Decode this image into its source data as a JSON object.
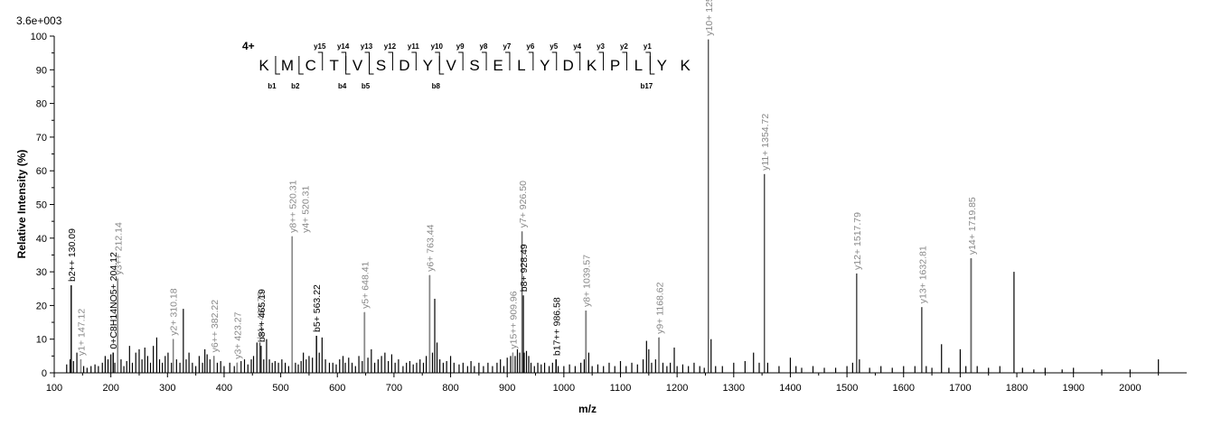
{
  "chart_data": {
    "type": "bar",
    "scale_label": "3.6e+003",
    "ylabel": "Relative   Intensity (%)",
    "xlabel": "m/z",
    "xlim": [
      100,
      2100
    ],
    "ylim": [
      0,
      100
    ],
    "x_ticks": [
      100,
      200,
      300,
      400,
      500,
      600,
      700,
      800,
      900,
      1000,
      1100,
      1200,
      1300,
      1400,
      1500,
      1600,
      1700,
      1800,
      1900,
      2000
    ],
    "y_ticks": [
      0,
      10,
      20,
      30,
      40,
      50,
      60,
      70,
      80,
      90,
      100
    ],
    "colors": {
      "annotated_gray": "#888888",
      "annotated_black": "#000000",
      "peak": "#000000"
    },
    "peptide": {
      "charge": "4+",
      "sequence": [
        "K",
        "M",
        "C",
        "T",
        "V",
        "S",
        "D",
        "Y",
        "V",
        "S",
        "E",
        "L",
        "Y",
        "D",
        "K",
        "P",
        "L",
        "Y",
        "K"
      ],
      "y_ions": [
        {
          "after": 2,
          "label": "y15"
        },
        {
          "after": 3,
          "label": "y14"
        },
        {
          "after": 4,
          "label": "y13"
        },
        {
          "after": 5,
          "label": "y12"
        },
        {
          "after": 6,
          "label": "y11"
        },
        {
          "after": 7,
          "label": "y10"
        },
        {
          "after": 8,
          "label": "y9"
        },
        {
          "after": 9,
          "label": "y8"
        },
        {
          "after": 10,
          "label": "y7"
        },
        {
          "after": 11,
          "label": "y6"
        },
        {
          "after": 12,
          "label": "y5"
        },
        {
          "after": 13,
          "label": "y4"
        },
        {
          "after": 14,
          "label": "y3"
        },
        {
          "after": 15,
          "label": "y2"
        },
        {
          "after": 16,
          "label": "y1"
        }
      ],
      "b_ions": [
        {
          "after": 0,
          "label": "b1"
        },
        {
          "after": 1,
          "label": "b2"
        },
        {
          "after": 3,
          "label": "b4"
        },
        {
          "after": 4,
          "label": "b5"
        },
        {
          "after": 7,
          "label": "b8"
        },
        {
          "after": 16,
          "label": "b17"
        }
      ]
    },
    "annotated_peaks": [
      {
        "mz": 130.09,
        "intensity": 26,
        "label": "b2++ 130.09",
        "color": "black"
      },
      {
        "mz": 147.12,
        "intensity": 4,
        "label": "y1+ 147.12",
        "color": "gray"
      },
      {
        "mz": 204.12,
        "intensity": 6,
        "label": "0+C8H14NO5+ 204.12",
        "color": "black"
      },
      {
        "mz": 212.14,
        "intensity": 28,
        "label": "y3++ 212.14",
        "color": "gray"
      },
      {
        "mz": 310.18,
        "intensity": 10,
        "label": "y2+ 310.18",
        "color": "gray"
      },
      {
        "mz": 382.22,
        "intensity": 5,
        "label": "y6++ 382.22",
        "color": "gray"
      },
      {
        "mz": 423.27,
        "intensity": 3,
        "label": "y3+ 423.27",
        "color": "gray"
      },
      {
        "mz": 463.75,
        "intensity": 9,
        "label": "b4+ 463.75",
        "color": "gray"
      },
      {
        "mz": 465.19,
        "intensity": 8,
        "label": "b8++ 465.19",
        "color": "black"
      },
      {
        "mz": 520.31,
        "intensity": 40.5,
        "label": "y8++ 520.31",
        "color": "gray"
      },
      {
        "mz": 520.31,
        "intensity": 40.5,
        "label": "y4+ 520.31",
        "color": "gray"
      },
      {
        "mz": 563.22,
        "intensity": 11,
        "label": "b5+ 563.22",
        "color": "black"
      },
      {
        "mz": 648.41,
        "intensity": 18,
        "label": "y5+ 648.41",
        "color": "gray"
      },
      {
        "mz": 763.44,
        "intensity": 29,
        "label": "y6+ 763.44",
        "color": "gray"
      },
      {
        "mz": 909.96,
        "intensity": 6,
        "label": "y15++ 909.96",
        "color": "gray"
      },
      {
        "mz": 926.5,
        "intensity": 42,
        "label": "y7+ 926.50",
        "color": "gray"
      },
      {
        "mz": 928.49,
        "intensity": 23,
        "label": "b8+ 928.49",
        "color": "black"
      },
      {
        "mz": 986.58,
        "intensity": 4,
        "label": "b17++ 986.58",
        "color": "black"
      },
      {
        "mz": 1039.57,
        "intensity": 18.5,
        "label": "y8+ 1039.57",
        "color": "gray"
      },
      {
        "mz": 1168.62,
        "intensity": 10.5,
        "label": "y9+ 1168.62",
        "color": "gray"
      },
      {
        "mz": 1255.6,
        "intensity": 99,
        "label": "y10+ 1255.60",
        "color": "gray"
      },
      {
        "mz": 1354.72,
        "intensity": 59,
        "label": "y11+ 1354.72",
        "color": "gray"
      },
      {
        "mz": 1517.79,
        "intensity": 29.5,
        "label": "y12+ 1517.79",
        "color": "gray"
      },
      {
        "mz": 1632.81,
        "intensity": 19.5,
        "label": "y13+ 1632.81",
        "color": "gray"
      },
      {
        "mz": 1719.85,
        "intensity": 34,
        "label": "y14+ 1719.85",
        "color": "gray"
      }
    ],
    "peaks": [
      [
        122,
        2.5
      ],
      [
        128,
        4
      ],
      [
        130,
        26
      ],
      [
        134,
        3.5
      ],
      [
        140,
        6
      ],
      [
        147,
        4
      ],
      [
        152,
        2
      ],
      [
        158,
        1.5
      ],
      [
        165,
        2
      ],
      [
        172,
        2.5
      ],
      [
        178,
        2
      ],
      [
        185,
        3
      ],
      [
        190,
        5
      ],
      [
        195,
        4
      ],
      [
        200,
        5.5
      ],
      [
        204,
        6
      ],
      [
        207,
        3
      ],
      [
        212,
        28
      ],
      [
        218,
        4
      ],
      [
        223,
        2
      ],
      [
        228,
        3.5
      ],
      [
        233,
        8
      ],
      [
        238,
        3
      ],
      [
        244,
        6
      ],
      [
        250,
        7
      ],
      [
        255,
        4
      ],
      [
        260,
        7.5
      ],
      [
        265,
        5
      ],
      [
        270,
        3
      ],
      [
        275,
        8
      ],
      [
        281,
        10.5
      ],
      [
        286,
        4
      ],
      [
        291,
        3
      ],
      [
        296,
        5
      ],
      [
        301,
        6
      ],
      [
        307,
        3
      ],
      [
        310,
        10
      ],
      [
        316,
        4
      ],
      [
        322,
        3
      ],
      [
        328,
        19
      ],
      [
        333,
        4
      ],
      [
        338,
        6
      ],
      [
        344,
        3
      ],
      [
        350,
        2
      ],
      [
        356,
        5
      ],
      [
        362,
        3
      ],
      [
        366,
        7
      ],
      [
        370,
        5.5
      ],
      [
        375,
        4
      ],
      [
        382,
        5
      ],
      [
        388,
        3
      ],
      [
        394,
        3.5
      ],
      [
        400,
        2
      ],
      [
        410,
        3
      ],
      [
        418,
        2
      ],
      [
        423,
        3
      ],
      [
        430,
        3.5
      ],
      [
        436,
        4
      ],
      [
        442,
        2.5
      ],
      [
        448,
        4
      ],
      [
        452,
        5
      ],
      [
        458,
        9
      ],
      [
        463,
        9
      ],
      [
        465,
        8
      ],
      [
        470,
        4
      ],
      [
        475,
        10
      ],
      [
        480,
        4
      ],
      [
        485,
        3
      ],
      [
        490,
        3.5
      ],
      [
        496,
        3
      ],
      [
        502,
        4
      ],
      [
        508,
        3
      ],
      [
        514,
        2
      ],
      [
        520,
        40.5
      ],
      [
        526,
        3
      ],
      [
        531,
        2.5
      ],
      [
        536,
        3.5
      ],
      [
        540,
        6
      ],
      [
        545,
        4
      ],
      [
        550,
        5
      ],
      [
        556,
        4.5
      ],
      [
        563,
        11
      ],
      [
        568,
        6
      ],
      [
        573,
        10.5
      ],
      [
        579,
        4
      ],
      [
        586,
        3
      ],
      [
        592,
        3
      ],
      [
        598,
        2.5
      ],
      [
        604,
        4
      ],
      [
        610,
        5
      ],
      [
        614,
        3
      ],
      [
        620,
        4.5
      ],
      [
        626,
        3
      ],
      [
        632,
        2
      ],
      [
        638,
        5
      ],
      [
        644,
        3.5
      ],
      [
        648,
        18
      ],
      [
        654,
        4.5
      ],
      [
        660,
        7
      ],
      [
        666,
        3
      ],
      [
        672,
        4
      ],
      [
        678,
        5
      ],
      [
        684,
        6
      ],
      [
        690,
        3.5
      ],
      [
        696,
        5.5
      ],
      [
        702,
        3
      ],
      [
        708,
        4
      ],
      [
        716,
        2
      ],
      [
        722,
        3
      ],
      [
        728,
        3.5
      ],
      [
        734,
        2.5
      ],
      [
        740,
        3
      ],
      [
        746,
        4
      ],
      [
        752,
        3
      ],
      [
        757,
        5
      ],
      [
        763,
        29
      ],
      [
        768,
        6
      ],
      [
        772,
        22
      ],
      [
        776,
        9
      ],
      [
        781,
        4
      ],
      [
        787,
        3
      ],
      [
        793,
        3.5
      ],
      [
        800,
        5
      ],
      [
        806,
        3
      ],
      [
        815,
        2.5
      ],
      [
        822,
        3
      ],
      [
        830,
        2
      ],
      [
        836,
        3.5
      ],
      [
        842,
        2
      ],
      [
        850,
        3
      ],
      [
        858,
        2
      ],
      [
        866,
        3
      ],
      [
        874,
        2
      ],
      [
        882,
        3
      ],
      [
        888,
        4
      ],
      [
        894,
        2
      ],
      [
        900,
        4.5
      ],
      [
        906,
        5
      ],
      [
        910,
        6
      ],
      [
        914,
        5
      ],
      [
        918,
        7
      ],
      [
        922,
        6
      ],
      [
        926,
        42
      ],
      [
        930,
        6
      ],
      [
        934,
        6.5
      ],
      [
        938,
        5
      ],
      [
        942,
        3
      ],
      [
        948,
        2
      ],
      [
        954,
        3
      ],
      [
        960,
        2.5
      ],
      [
        966,
        3
      ],
      [
        974,
        2
      ],
      [
        980,
        3
      ],
      [
        986,
        4
      ],
      [
        990,
        2
      ],
      [
        1000,
        2
      ],
      [
        1010,
        2.5
      ],
      [
        1020,
        2
      ],
      [
        1030,
        3
      ],
      [
        1036,
        4
      ],
      [
        1039,
        18.5
      ],
      [
        1044,
        6
      ],
      [
        1050,
        2
      ],
      [
        1060,
        2.5
      ],
      [
        1070,
        2
      ],
      [
        1080,
        3
      ],
      [
        1090,
        2
      ],
      [
        1100,
        3.5
      ],
      [
        1110,
        2
      ],
      [
        1120,
        3
      ],
      [
        1130,
        2.5
      ],
      [
        1140,
        4
      ],
      [
        1146,
        9.5
      ],
      [
        1150,
        7
      ],
      [
        1155,
        3
      ],
      [
        1162,
        4
      ],
      [
        1168,
        10.5
      ],
      [
        1175,
        3
      ],
      [
        1182,
        2
      ],
      [
        1188,
        3
      ],
      [
        1195,
        7.5
      ],
      [
        1200,
        2
      ],
      [
        1210,
        2.5
      ],
      [
        1220,
        2
      ],
      [
        1230,
        3
      ],
      [
        1240,
        2
      ],
      [
        1248,
        1.5
      ],
      [
        1255,
        99
      ],
      [
        1260,
        10
      ],
      [
        1268,
        2
      ],
      [
        1280,
        2
      ],
      [
        1300,
        3
      ],
      [
        1320,
        3.5
      ],
      [
        1335,
        6
      ],
      [
        1345,
        3
      ],
      [
        1354,
        59
      ],
      [
        1360,
        3
      ],
      [
        1380,
        2
      ],
      [
        1400,
        4.5
      ],
      [
        1410,
        2
      ],
      [
        1420,
        1.5
      ],
      [
        1440,
        2
      ],
      [
        1460,
        1.5
      ],
      [
        1480,
        1.5
      ],
      [
        1500,
        2
      ],
      [
        1510,
        3
      ],
      [
        1517,
        29.5
      ],
      [
        1522,
        4
      ],
      [
        1540,
        1.5
      ],
      [
        1560,
        2
      ],
      [
        1580,
        1.5
      ],
      [
        1600,
        2
      ],
      [
        1620,
        2
      ],
      [
        1632,
        19.5
      ],
      [
        1640,
        2
      ],
      [
        1650,
        1.5
      ],
      [
        1667,
        8.5
      ],
      [
        1680,
        1.5
      ],
      [
        1700,
        7
      ],
      [
        1710,
        2
      ],
      [
        1719,
        34
      ],
      [
        1730,
        2
      ],
      [
        1750,
        1.5
      ],
      [
        1770,
        2
      ],
      [
        1795,
        30
      ],
      [
        1810,
        1.5
      ],
      [
        1830,
        1
      ],
      [
        1850,
        1.5
      ],
      [
        1880,
        1
      ],
      [
        1900,
        1.5
      ],
      [
        1950,
        1
      ],
      [
        2000,
        1
      ],
      [
        2050,
        4
      ]
    ]
  }
}
